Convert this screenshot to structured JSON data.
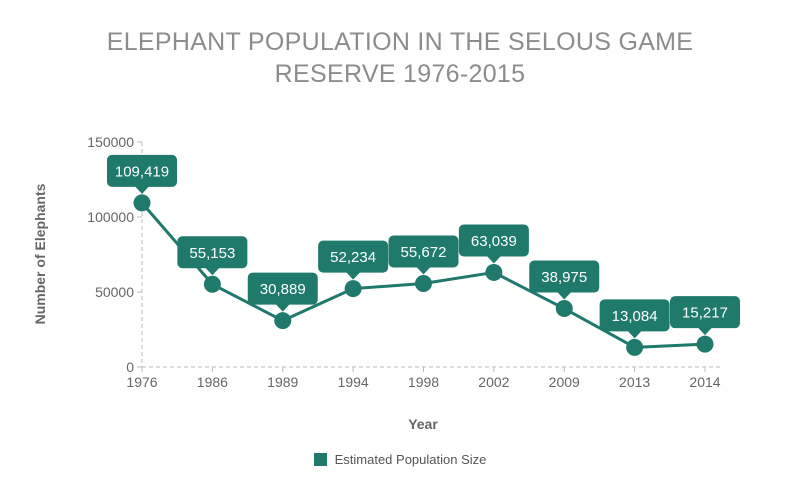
{
  "colors": {
    "series": "#1f7a6b",
    "axis": "#bbbbbb",
    "text": "#666666"
  },
  "chart_data": {
    "type": "line",
    "title_line1": "ELEPHANT POPULATION IN THE SELOUS GAME",
    "title_line2": "RESERVE 1976-2015",
    "xlabel": "Year",
    "ylabel": "Number of Elephants",
    "ylim": [
      0,
      150000
    ],
    "yticks": [
      "0",
      "50000",
      "100000",
      "150000"
    ],
    "grid": false,
    "legend_position": "bottom",
    "categories": [
      "1976",
      "1986",
      "1989",
      "1994",
      "1998",
      "2002",
      "2009",
      "2013",
      "2014"
    ],
    "series": [
      {
        "name": "Estimated Population Size",
        "values": [
          109419,
          55153,
          30889,
          52234,
          55672,
          63039,
          38975,
          13084,
          15217
        ],
        "labels": [
          "109,419",
          "55,153",
          "30,889",
          "52,234",
          "55,672",
          "63,039",
          "38,975",
          "13,084",
          "15,217"
        ]
      }
    ]
  }
}
